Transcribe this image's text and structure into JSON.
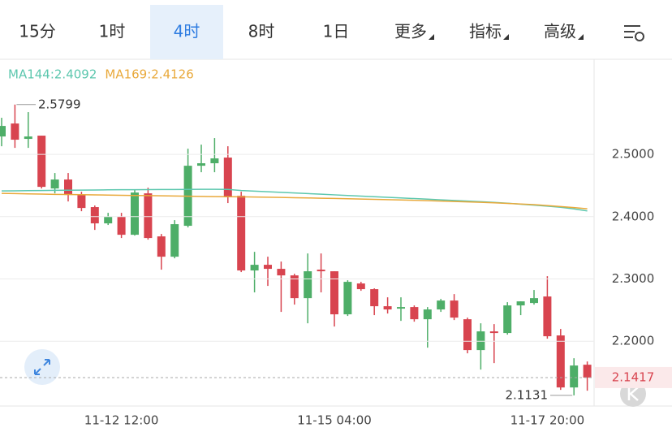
{
  "chart_data": {
    "type": "candlestick",
    "tabs": [
      "15分",
      "1时",
      "4时",
      "8时",
      "1日",
      "更多",
      "指标",
      "高级"
    ],
    "active_tab": 2,
    "categories": [
      null,
      null,
      null,
      null,
      null,
      null,
      null,
      null,
      null,
      "11-12 12:00",
      null,
      null,
      null,
      null,
      null,
      null,
      null,
      null,
      null,
      null,
      null,
      null,
      null,
      null,
      null,
      "11-15 04:00",
      null,
      null,
      null,
      null,
      null,
      null,
      null,
      null,
      null,
      null,
      null,
      null,
      null,
      null,
      null,
      "11-17 20:00",
      null,
      null,
      null
    ],
    "open": [
      2.5287,
      2.5495,
      2.5248,
      2.53,
      2.4452,
      2.4596,
      2.4348,
      2.4153,
      2.3892,
      2.3996,
      2.3709,
      2.4374,
      2.3683,
      2.3357,
      2.3853,
      2.4817,
      2.4857,
      2.4948,
      2.4335,
      2.3136,
      2.3227,
      2.3162,
      2.3057,
      2.2692,
      2.3149,
      2.3123,
      2.2432,
      2.2927,
      2.2836,
      2.2562,
      2.2523,
      2.2549,
      2.2353,
      2.251,
      2.2653,
      2.2353,
      2.1858,
      2.2158,
      2.2132,
      2.2575,
      2.2614,
      2.2718,
      2.2093,
      2.1258,
      2.1623
    ],
    "high": [
      2.5587,
      2.5799,
      2.5678,
      2.53,
      2.47,
      2.47,
      2.44,
      2.4179,
      2.4061,
      2.4061,
      2.4426,
      2.4465,
      2.3722,
      2.3944,
      2.5091,
      2.5156,
      2.5261,
      2.513,
      2.44,
      2.3435,
      2.3357,
      2.3279,
      2.3083,
      2.3409,
      2.3409,
      2.3123,
      2.2979,
      2.2953,
      2.2849,
      2.2705,
      2.2705,
      2.2575,
      2.2549,
      2.2679,
      2.2757,
      2.2379,
      2.2288,
      2.2275,
      2.2627,
      2.264,
      2.2823,
      2.3044,
      2.2197,
      2.1727,
      2.1675
    ],
    "low": [
      2.513,
      2.5104,
      2.5104,
      2.4452,
      2.4374,
      2.4244,
      2.4087,
      2.3787,
      2.3866,
      2.3657,
      2.3696,
      2.3631,
      2.3149,
      2.3331,
      2.3827,
      2.4713,
      2.4713,
      2.4218,
      2.311,
      2.2784,
      2.2888,
      2.2471,
      2.2588,
      2.2288,
      2.2784,
      2.2236,
      2.2406,
      2.281,
      2.2419,
      2.2445,
      2.2327,
      2.2314,
      2.1897,
      2.2471,
      2.234,
      2.1806,
      2.1545,
      2.1649,
      2.2106,
      2.2419,
      2.2588,
      2.2041,
      2.1219,
      2.1131,
      2.1206
    ],
    "close": [
      2.5456,
      2.5235,
      2.5287,
      2.4478,
      2.4596,
      2.4348,
      2.4139,
      2.3892,
      2.3996,
      2.3709,
      2.4387,
      2.3657,
      2.3357,
      2.3879,
      2.4817,
      2.4857,
      2.4935,
      2.4322,
      2.3136,
      2.3227,
      2.3162,
      2.3057,
      2.2692,
      2.3123,
      2.3123,
      2.2432,
      2.2953,
      2.2836,
      2.2562,
      2.251,
      2.2549,
      2.2353,
      2.251,
      2.2653,
      2.2379,
      2.1858,
      2.2158,
      2.2132,
      2.2575,
      2.264,
      2.2692,
      2.208,
      2.1258,
      2.161,
      2.1417
    ],
    "up_color": "#4eae68",
    "down_color": "#d8444f",
    "series": [
      {
        "label": "MA144:2.4092",
        "color": "#5cc7ae",
        "values": [
          2.4413,
          2.4415,
          2.4418,
          2.442,
          2.4422,
          2.4424,
          2.4426,
          2.4428,
          2.443,
          2.4432,
          2.4433,
          2.4434,
          2.4435,
          2.4436,
          2.4437,
          2.4438,
          2.4438,
          2.4437,
          2.442,
          2.441,
          2.44,
          2.439,
          2.438,
          2.437,
          2.436,
          2.435,
          2.434,
          2.433,
          2.432,
          2.431,
          2.43,
          2.429,
          2.428,
          2.427,
          2.426,
          2.425,
          2.424,
          2.4228,
          2.4215,
          2.42,
          2.4185,
          2.4168,
          2.415,
          2.4125,
          2.4092
        ]
      },
      {
        "label": "MA169:2.4126",
        "color": "#e9a93b",
        "values": [
          2.4374,
          2.437,
          2.4366,
          2.4362,
          2.4358,
          2.4355,
          2.4352,
          2.4349,
          2.4346,
          2.4343,
          2.434,
          2.4337,
          2.4334,
          2.4331,
          2.4328,
          2.4325,
          2.4322,
          2.432,
          2.4318,
          2.4315,
          2.4312,
          2.4308,
          2.4304,
          2.43,
          2.4296,
          2.4292,
          2.4288,
          2.4283,
          2.4278,
          2.4273,
          2.4268,
          2.4262,
          2.4256,
          2.425,
          2.4244,
          2.4237,
          2.423,
          2.4222,
          2.4213,
          2.4203,
          2.4192,
          2.4178,
          2.4162,
          2.4145,
          2.4126
        ]
      }
    ],
    "ylim": [
      2.096,
      2.65
    ],
    "yticks": [
      {
        "value": 2.5,
        "label": "2.5000"
      },
      {
        "value": 2.4,
        "label": "2.4000"
      },
      {
        "value": 2.3,
        "label": "2.3000"
      },
      {
        "value": 2.2,
        "label": "2.2000"
      }
    ],
    "high_marker": 2.5799,
    "low_marker": 2.1131,
    "last_price": 2.1417
  }
}
